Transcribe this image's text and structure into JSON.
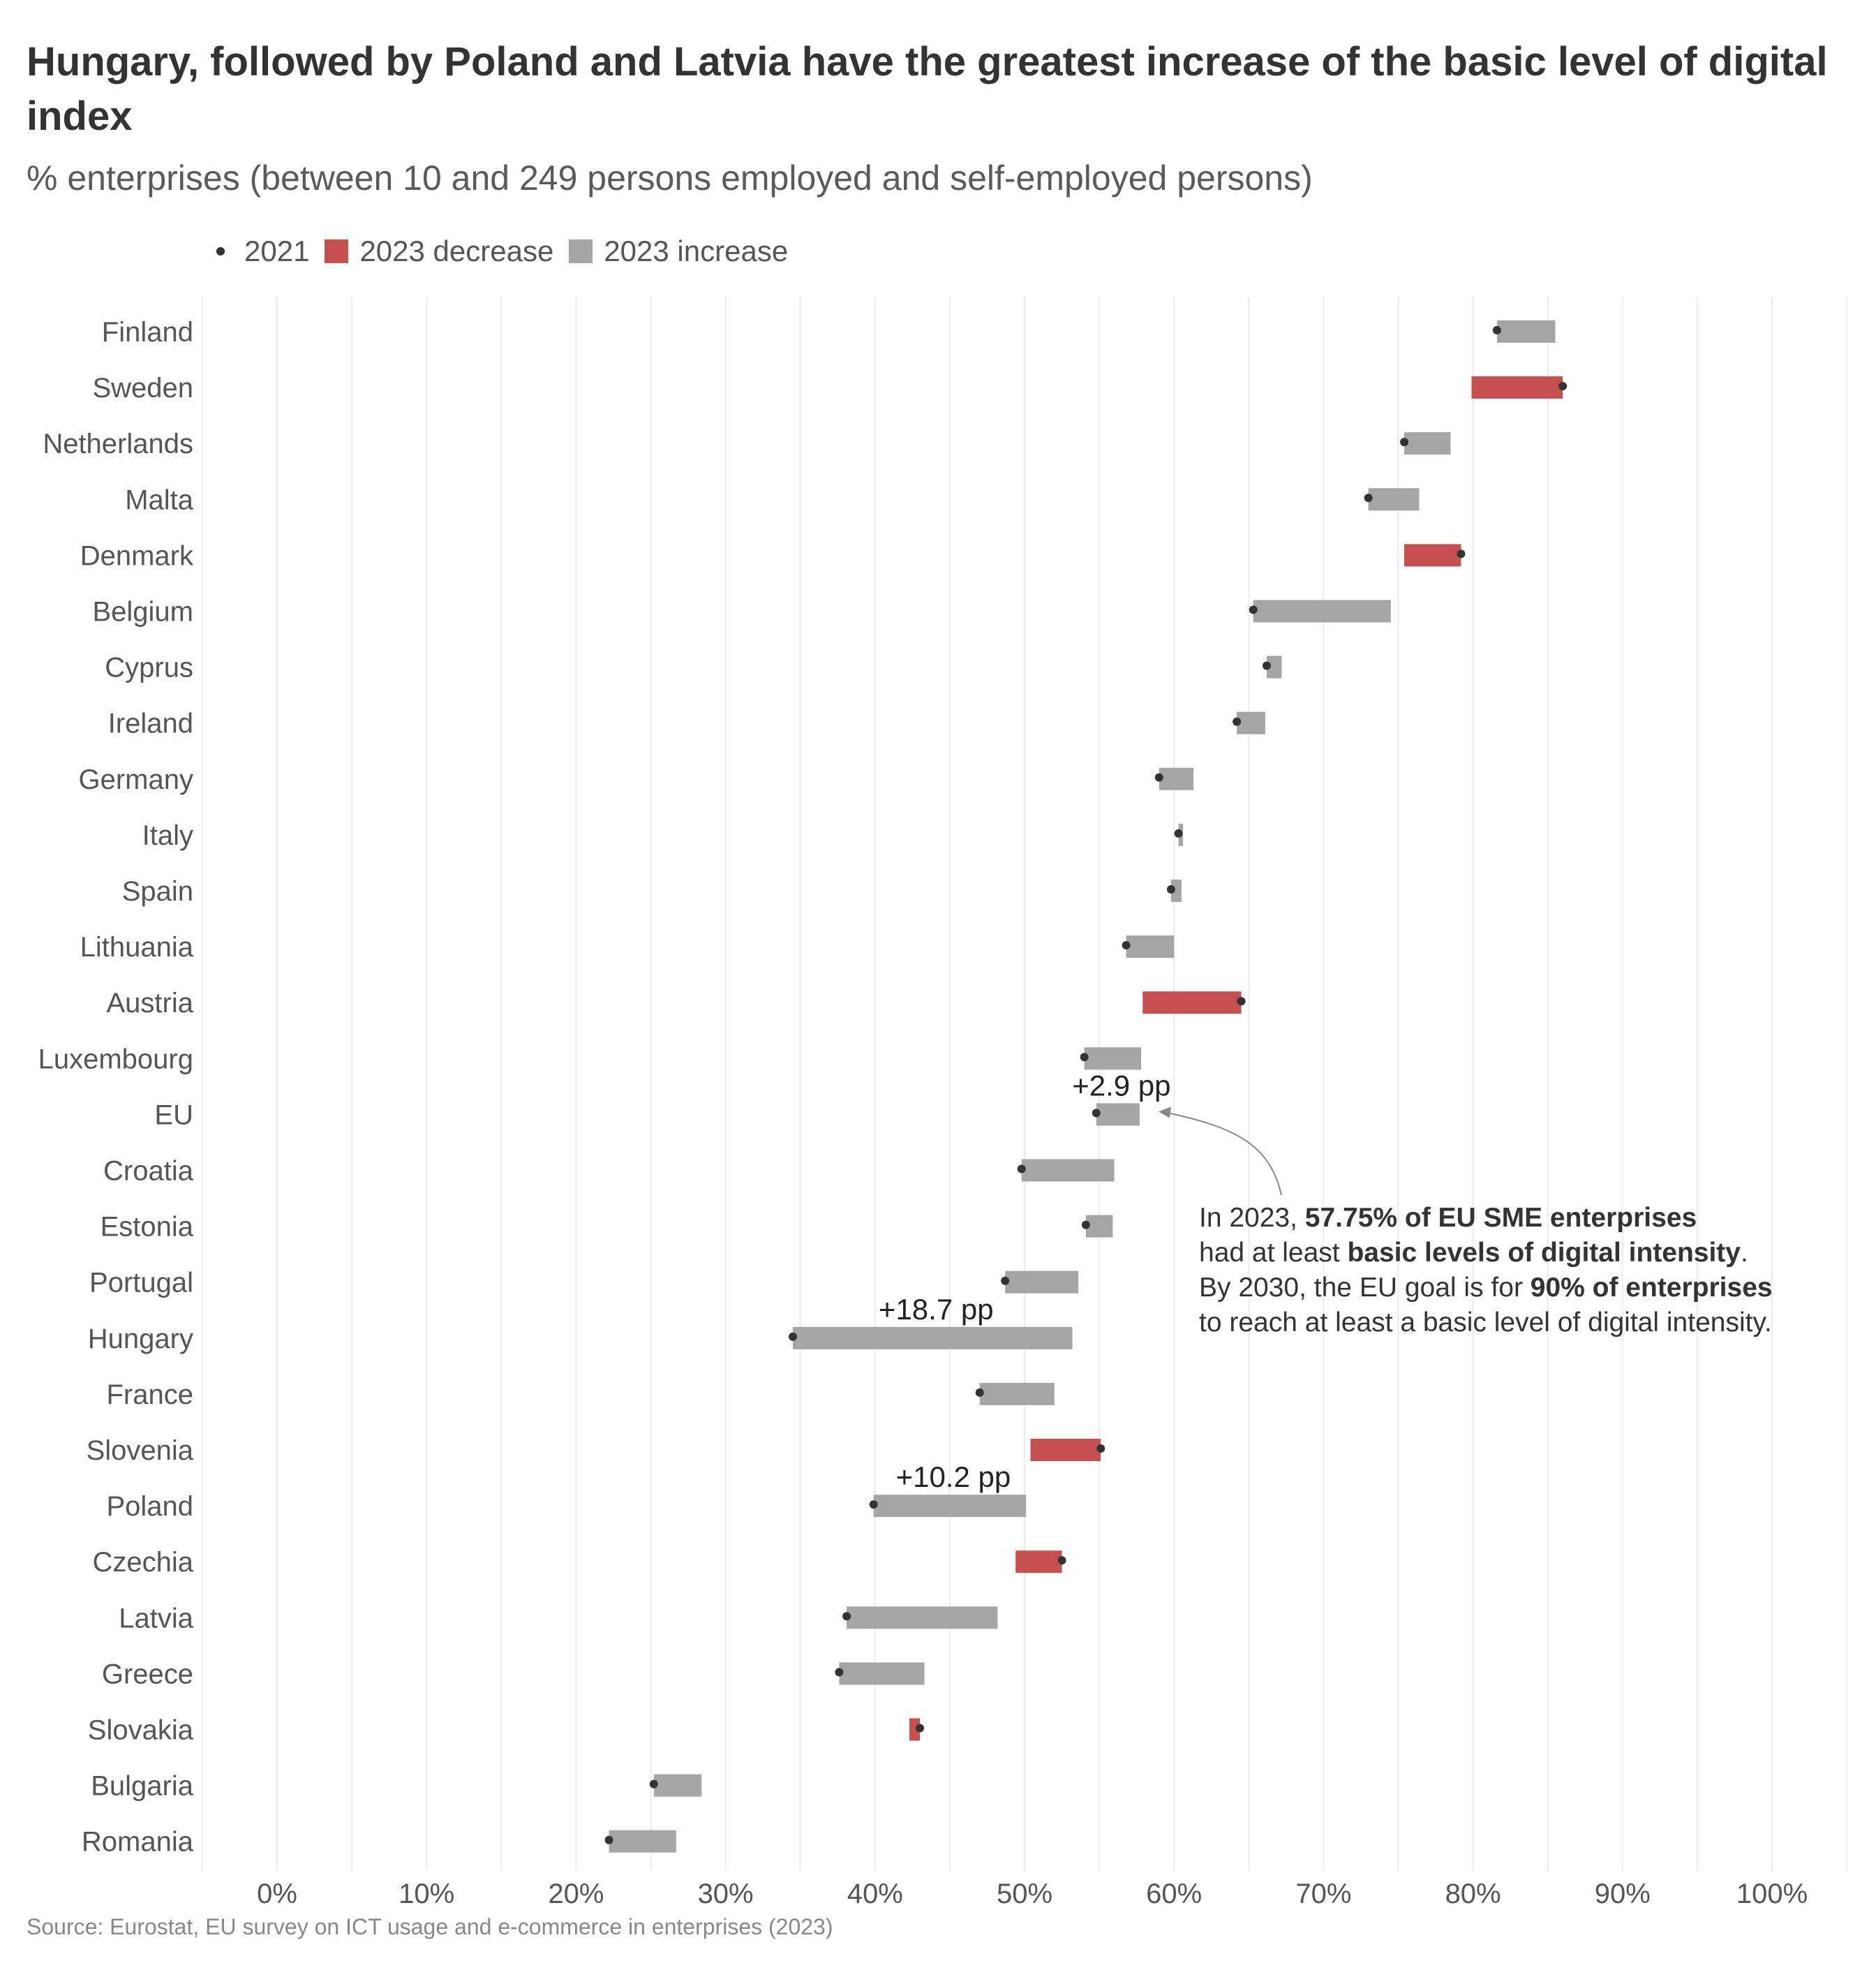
{
  "chart_data": {
    "type": "dumbbell",
    "title": "Hungary, followed by Poland and Latvia have the greatest increase of the basic level of digital index",
    "subtitle": "% enterprises (between 10 and 249 persons employed and self-employed persons)",
    "legend": [
      {
        "label": "2021",
        "type": "dot",
        "color": "#333333"
      },
      {
        "label": "2023 decrease",
        "type": "square",
        "color": "#c5504f"
      },
      {
        "label": "2023 increase",
        "type": "square",
        "color": "#a5a5a5"
      }
    ],
    "xlim": [
      0,
      100
    ],
    "x_ticks": [
      0,
      10,
      20,
      30,
      40,
      50,
      60,
      70,
      80,
      90,
      100
    ],
    "x_tick_labels": [
      "0%",
      "10%",
      "20%",
      "30%",
      "40%",
      "50%",
      "60%",
      "70%",
      "80%",
      "90%",
      "100%"
    ],
    "grid": "vertical",
    "categories": [
      "Finland",
      "Sweden",
      "Netherlands",
      "Malta",
      "Denmark",
      "Belgium",
      "Cyprus",
      "Ireland",
      "Germany",
      "Italy",
      "Spain",
      "Lithuania",
      "Austria",
      "Luxembourg",
      "EU",
      "Croatia",
      "Estonia",
      "Portugal",
      "Hungary",
      "France",
      "Slovenia",
      "Poland",
      "Czechia",
      "Latvia",
      "Greece",
      "Slovakia",
      "Bulgaria",
      "Romania"
    ],
    "series": [
      {
        "name": "2021",
        "values": [
          81.6,
          86.0,
          75.4,
          73.0,
          79.2,
          65.3,
          66.2,
          64.2,
          59.0,
          60.3,
          59.8,
          56.8,
          64.5,
          54.0,
          54.8,
          49.8,
          54.1,
          48.7,
          34.5,
          47.0,
          55.1,
          39.9,
          52.5,
          38.1,
          37.6,
          43.0,
          25.2,
          22.2
        ]
      },
      {
        "name": "2023",
        "values": [
          85.5,
          79.9,
          78.5,
          76.4,
          75.4,
          74.5,
          67.2,
          66.1,
          61.3,
          60.6,
          60.5,
          60.0,
          57.9,
          57.8,
          57.7,
          56.0,
          55.9,
          53.6,
          53.2,
          52.0,
          50.4,
          50.1,
          49.4,
          48.2,
          43.3,
          42.3,
          28.4,
          26.7
        ]
      }
    ],
    "annotations": [
      {
        "category": "EU",
        "text": "+2.9 pp"
      },
      {
        "category": "Hungary",
        "text": "+18.7 pp"
      },
      {
        "category": "Poland",
        "text": "+10.2 pp"
      }
    ],
    "note": {
      "line1_a": "In 2023, ",
      "line1_b": "57.75% of EU SME enterprises",
      "line2_a": "had at least ",
      "line2_b": "basic levels of digital intensity",
      "line2_c": ".",
      "line3_a": "By 2030, the EU goal is for ",
      "line3_b": "90% of enterprises",
      "line4": "to reach at least a basic level of digital intensity."
    },
    "source": "Source: Eurostat, EU survey on ICT usage and e-commerce in enterprises (2023)",
    "colors": {
      "increase": "#a5a5a5",
      "decrease": "#c5504f",
      "dot": "#333333",
      "grid": "#ebebeb",
      "label": "#555555"
    }
  }
}
